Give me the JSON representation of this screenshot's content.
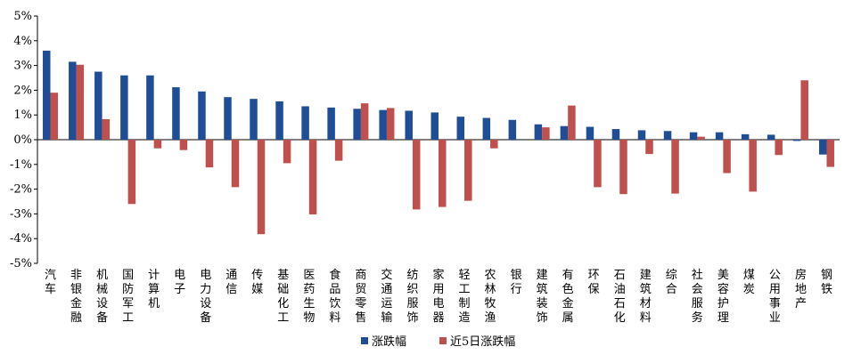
{
  "chart_data": {
    "type": "bar",
    "categories": [
      "汽车",
      "非银金融",
      "机械设备",
      "国防军工",
      "计算机",
      "电子",
      "电力设备",
      "通信",
      "传媒",
      "基础化工",
      "医药生物",
      "食品饮料",
      "商贸零售",
      "交通运输",
      "纺织服饰",
      "家用电器",
      "轻工制造",
      "农林牧渔",
      "银行",
      "建筑装饰",
      "有色金属",
      "环保",
      "石油石化",
      "建筑材料",
      "综合",
      "社会服务",
      "美容护理",
      "煤炭",
      "公用事业",
      "房地产",
      "钢铁"
    ],
    "series": [
      {
        "name": "涨跌幅",
        "color": "#1f4e96",
        "values": [
          3.6,
          3.15,
          2.75,
          2.6,
          2.6,
          2.12,
          1.95,
          1.72,
          1.65,
          1.55,
          1.35,
          1.3,
          1.25,
          1.2,
          1.17,
          1.1,
          0.93,
          0.88,
          0.8,
          0.62,
          0.55,
          0.52,
          0.43,
          0.38,
          0.35,
          0.3,
          0.3,
          0.22,
          0.2,
          -0.05,
          -0.6
        ]
      },
      {
        "name": "近5日涨跌幅",
        "color": "#c0504d",
        "values": [
          1.9,
          3.03,
          0.83,
          -2.6,
          -0.35,
          -0.42,
          -1.12,
          -1.92,
          -3.82,
          -0.95,
          -3.02,
          -0.85,
          1.47,
          1.28,
          -2.82,
          -2.72,
          -2.47,
          -0.35,
          0.0,
          0.5,
          1.38,
          -1.92,
          -2.2,
          -0.58,
          -2.18,
          0.12,
          -1.35,
          -2.1,
          -0.62,
          2.4,
          -1.1
        ]
      }
    ],
    "yticks": [
      "5%",
      "4%",
      "3%",
      "2%",
      "1%",
      "0%",
      "-1%",
      "-2%",
      "-3%",
      "-4%",
      "-5%"
    ],
    "ylim": [
      -5,
      5
    ],
    "legend_position": "bottom"
  }
}
